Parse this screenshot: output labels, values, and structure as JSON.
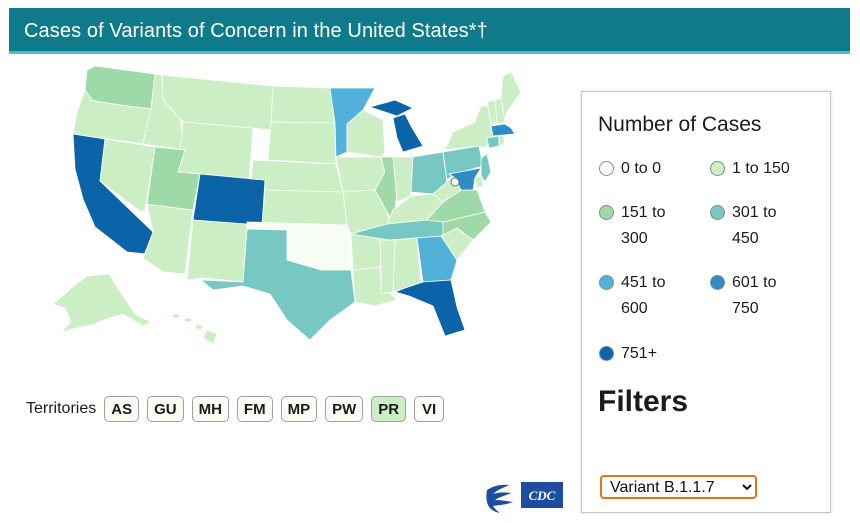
{
  "header": {
    "title": "Cases of Variants of Concern in the United States*†"
  },
  "legend": {
    "title": "Number of Cases",
    "items": [
      {
        "label": "0 to 0",
        "color": "#f7fcf5"
      },
      {
        "label": "1 to 150",
        "color": "#cceec5"
      },
      {
        "label": "151 to 300",
        "color": "#9fd9a7"
      },
      {
        "label": "301 to 450",
        "color": "#77c8c3"
      },
      {
        "label": "451 to 600",
        "color": "#52b1d8"
      },
      {
        "label": "601 to 750",
        "color": "#2e8bc4"
      },
      {
        "label": "751+",
        "color": "#0b63a8"
      }
    ]
  },
  "filters": {
    "heading": "Filters",
    "selected": "Variant B.1.1.7",
    "options": [
      "Variant B.1.1.7"
    ]
  },
  "territories": {
    "label": "Territories",
    "items": [
      {
        "code": "AS",
        "color": "#f7fcf5"
      },
      {
        "code": "GU",
        "color": "#f7fcf5"
      },
      {
        "code": "MH",
        "color": "#f7fcf5"
      },
      {
        "code": "FM",
        "color": "#f7fcf5"
      },
      {
        "code": "MP",
        "color": "#f7fcf5"
      },
      {
        "code": "PW",
        "color": "#f7fcf5"
      },
      {
        "code": "PR",
        "color": "#cceec5"
      },
      {
        "code": "VI",
        "color": "#f7fcf5"
      }
    ]
  },
  "map": {
    "states": [
      {
        "code": "WA",
        "bin": 2
      },
      {
        "code": "OR",
        "bin": 1
      },
      {
        "code": "CA",
        "bin": 6
      },
      {
        "code": "ID",
        "bin": 1
      },
      {
        "code": "NV",
        "bin": 1
      },
      {
        "code": "AZ",
        "bin": 1
      },
      {
        "code": "MT",
        "bin": 1
      },
      {
        "code": "WY",
        "bin": 1
      },
      {
        "code": "UT",
        "bin": 2
      },
      {
        "code": "CO",
        "bin": 6
      },
      {
        "code": "NM",
        "bin": 1
      },
      {
        "code": "ND",
        "bin": 1
      },
      {
        "code": "SD",
        "bin": 1
      },
      {
        "code": "NE",
        "bin": 1
      },
      {
        "code": "KS",
        "bin": 1
      },
      {
        "code": "OK",
        "bin": 0
      },
      {
        "code": "TX",
        "bin": 3
      },
      {
        "code": "MN",
        "bin": 4
      },
      {
        "code": "IA",
        "bin": 1
      },
      {
        "code": "MO",
        "bin": 1
      },
      {
        "code": "AR",
        "bin": 1
      },
      {
        "code": "LA",
        "bin": 1
      },
      {
        "code": "WI",
        "bin": 1
      },
      {
        "code": "IL",
        "bin": 2
      },
      {
        "code": "MI",
        "bin": 6
      },
      {
        "code": "IN",
        "bin": 1
      },
      {
        "code": "OH",
        "bin": 3
      },
      {
        "code": "KY",
        "bin": 1
      },
      {
        "code": "TN",
        "bin": 3
      },
      {
        "code": "MS",
        "bin": 1
      },
      {
        "code": "AL",
        "bin": 1
      },
      {
        "code": "GA",
        "bin": 4
      },
      {
        "code": "FL",
        "bin": 6
      },
      {
        "code": "SC",
        "bin": 1
      },
      {
        "code": "NC",
        "bin": 2
      },
      {
        "code": "VA",
        "bin": 2
      },
      {
        "code": "WV",
        "bin": 1
      },
      {
        "code": "PA",
        "bin": 3
      },
      {
        "code": "NY",
        "bin": 1
      },
      {
        "code": "VT",
        "bin": 1
      },
      {
        "code": "NH",
        "bin": 1
      },
      {
        "code": "ME",
        "bin": 1
      },
      {
        "code": "MA",
        "bin": 5
      },
      {
        "code": "CT",
        "bin": 3
      },
      {
        "code": "RI",
        "bin": 1
      },
      {
        "code": "NJ",
        "bin": 3
      },
      {
        "code": "DE",
        "bin": 1
      },
      {
        "code": "MD",
        "bin": 5
      },
      {
        "code": "DC",
        "bin": 0
      },
      {
        "code": "AK",
        "bin": 1
      },
      {
        "code": "HI",
        "bin": 1
      }
    ]
  },
  "logos": {
    "hhs": "hhs-eagle-logo",
    "cdc": "CDC"
  }
}
